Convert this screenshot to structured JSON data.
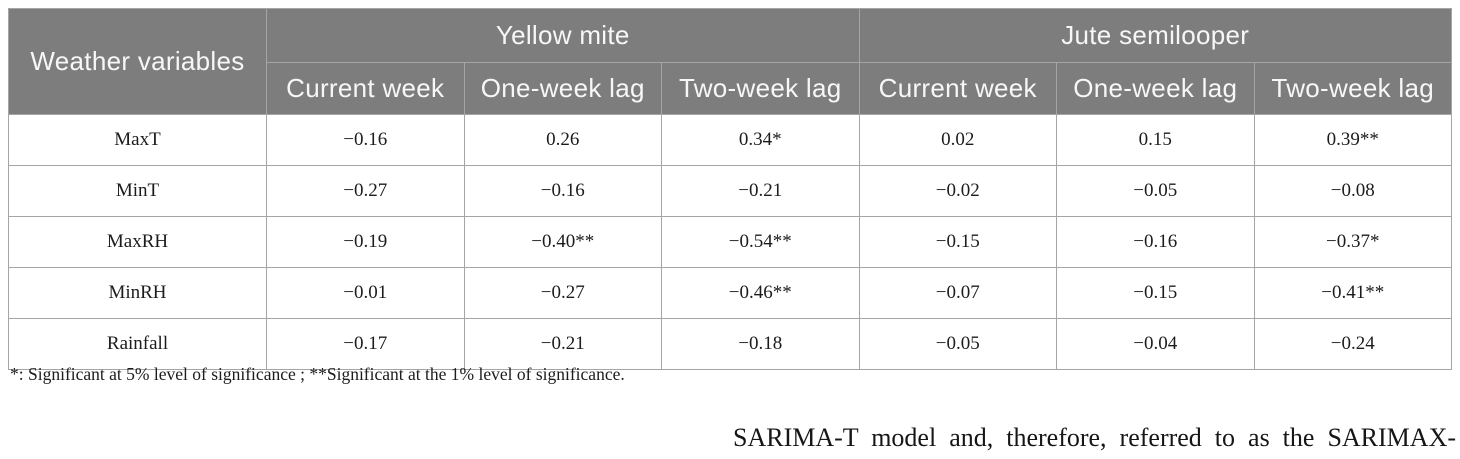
{
  "colors": {
    "header_bg": "#7d7d7d",
    "header_text": "#f7f7f7",
    "cell_border": "#a5a5a5",
    "body_text": "#1c1c1c"
  },
  "table": {
    "header": {
      "variable_col": "Weather variables",
      "groups": [
        {
          "label": "Yellow mite"
        },
        {
          "label": "Jute semilooper"
        }
      ],
      "subcols": [
        "Current week",
        "One-week lag",
        "Two-week lag",
        "Current week",
        "One-week lag",
        "Two-week lag"
      ]
    },
    "rows": [
      {
        "label": "MaxT",
        "cells": [
          "−0.16",
          "0.26",
          "0.34*",
          "0.02",
          "0.15",
          "0.39**"
        ]
      },
      {
        "label": "MinT",
        "cells": [
          "−0.27",
          "−0.16",
          "−0.21",
          "−0.02",
          "−0.05",
          "−0.08"
        ]
      },
      {
        "label": "MaxRH",
        "cells": [
          "−0.19",
          "−0.40**",
          "−0.54**",
          "−0.15",
          "−0.16",
          "−0.37*"
        ]
      },
      {
        "label": "MinRH",
        "cells": [
          "−0.01",
          "−0.27",
          "−0.46**",
          "−0.07",
          "−0.15",
          "−0.41**"
        ]
      },
      {
        "label": "Rainfall",
        "cells": [
          "−0.17",
          "−0.21",
          "−0.18",
          "−0.05",
          "−0.04",
          "−0.24"
        ]
      }
    ],
    "footnote": "*: Significant at 5% level of significance ; **Significant at the 1% level of significance."
  },
  "page_fragment": {
    "text": "SARIMA-T model and, therefore, referred to as the SARIMAX-"
  }
}
